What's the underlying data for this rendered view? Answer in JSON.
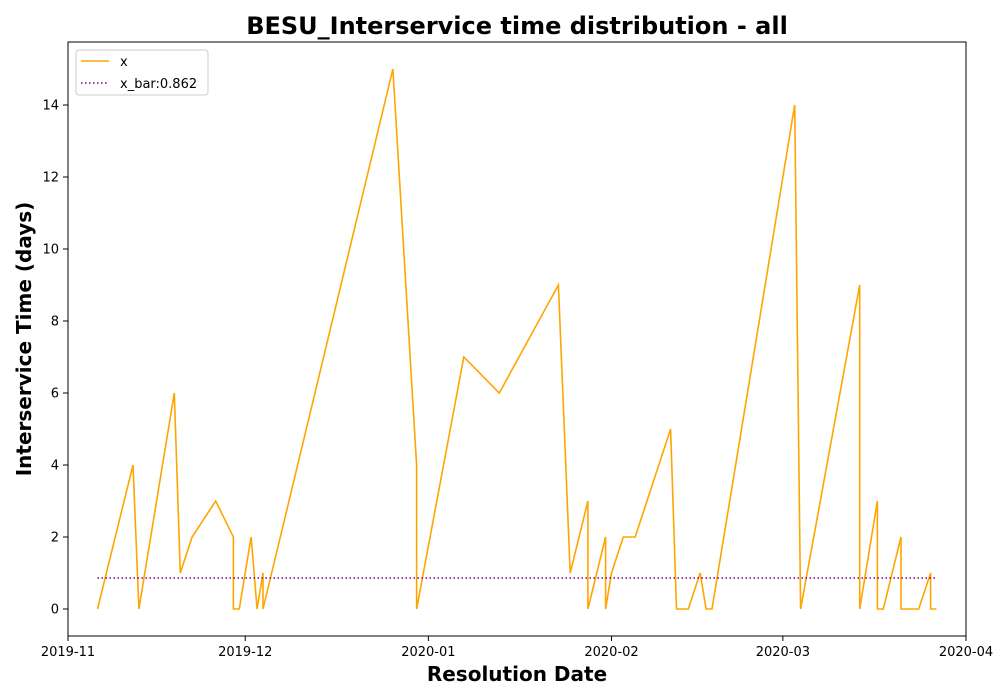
{
  "chart_data": {
    "type": "line",
    "title": "BESU_Interservice time distribution - all",
    "xlabel": "Resolution Date",
    "ylabel": "Interservice Time (days)",
    "xlim": [
      "2019-11-01",
      "2020-04-01"
    ],
    "ylim": [
      -0.75,
      15.75
    ],
    "x_ticks": [
      "2019-11",
      "2019-12",
      "2020-01",
      "2020-02",
      "2020-03",
      "2020-04"
    ],
    "x_tick_dates": [
      "2019-11-01",
      "2019-12-01",
      "2020-01-01",
      "2020-02-01",
      "2020-03-01",
      "2020-04-01"
    ],
    "y_ticks": [
      0,
      2,
      4,
      6,
      8,
      10,
      12,
      14
    ],
    "grid": false,
    "legend_position": "top-left",
    "colors": {
      "x": "#ffa500",
      "x_bar": "#800080"
    },
    "series": [
      {
        "name": "x",
        "style": "solid",
        "points": [
          [
            "2019-11-06",
            0
          ],
          [
            "2019-11-12",
            4
          ],
          [
            "2019-11-13",
            0
          ],
          [
            "2019-11-19",
            6
          ],
          [
            "2019-11-20",
            1
          ],
          [
            "2019-11-22",
            2
          ],
          [
            "2019-11-26",
            3
          ],
          [
            "2019-11-29",
            2
          ],
          [
            "2019-11-29",
            0
          ],
          [
            "2019-11-30",
            0
          ],
          [
            "2019-12-02",
            2
          ],
          [
            "2019-12-03",
            0
          ],
          [
            "2019-12-04",
            1
          ],
          [
            "2019-12-04",
            0
          ],
          [
            "2019-12-26",
            15
          ],
          [
            "2019-12-30",
            4
          ],
          [
            "2019-12-30",
            0
          ],
          [
            "2020-01-07",
            7
          ],
          [
            "2020-01-13",
            6
          ],
          [
            "2020-01-23",
            9
          ],
          [
            "2020-01-25",
            1
          ],
          [
            "2020-01-28",
            3
          ],
          [
            "2020-01-28",
            0
          ],
          [
            "2020-01-31",
            2
          ],
          [
            "2020-01-31",
            0
          ],
          [
            "2020-02-01",
            1
          ],
          [
            "2020-02-03",
            2
          ],
          [
            "2020-02-05",
            2
          ],
          [
            "2020-02-11",
            5
          ],
          [
            "2020-02-12",
            0
          ],
          [
            "2020-02-14",
            0
          ],
          [
            "2020-02-16",
            1
          ],
          [
            "2020-02-17",
            0
          ],
          [
            "2020-02-18",
            0
          ],
          [
            "2020-03-03",
            14
          ],
          [
            "2020-03-04",
            0
          ],
          [
            "2020-03-14",
            9
          ],
          [
            "2020-03-14",
            0
          ],
          [
            "2020-03-17",
            3
          ],
          [
            "2020-03-17",
            0
          ],
          [
            "2020-03-18",
            0
          ],
          [
            "2020-03-21",
            2
          ],
          [
            "2020-03-21",
            0
          ],
          [
            "2020-03-24",
            0
          ],
          [
            "2020-03-26",
            1
          ],
          [
            "2020-03-26",
            0
          ],
          [
            "2020-03-27",
            0
          ]
        ]
      },
      {
        "name": "x_bar:0.862",
        "style": "dotted",
        "value": 0.862,
        "points": [
          [
            "2019-11-06",
            0.862
          ],
          [
            "2020-03-27",
            0.862
          ]
        ]
      }
    ]
  }
}
